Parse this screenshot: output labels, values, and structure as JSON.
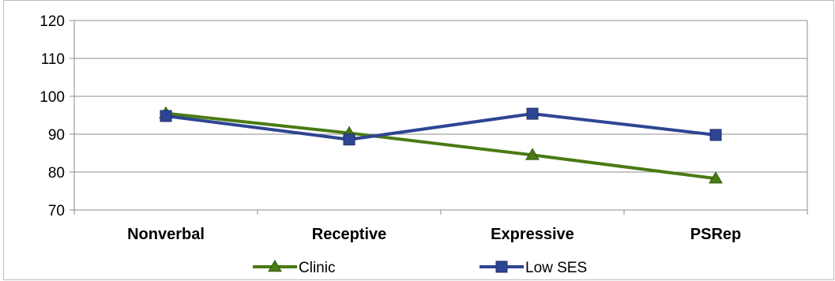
{
  "chart_data": {
    "type": "line",
    "categories": [
      "Nonverbal",
      "Receptive",
      "Expressive",
      "PSRep"
    ],
    "series": [
      {
        "name": "Clinic",
        "values": [
          95.5,
          90.3,
          84.5,
          78.3
        ],
        "color": "#4a7a14",
        "marker": "triangle"
      },
      {
        "name": "Low SES",
        "values": [
          94.8,
          88.6,
          95.4,
          89.8
        ],
        "color": "#2e4592",
        "marker": "square"
      }
    ],
    "title": "",
    "xlabel": "",
    "ylabel": "",
    "ylim": [
      70,
      120
    ],
    "yticks": [
      70,
      80,
      90,
      100,
      110,
      120
    ],
    "grid": true,
    "legend": "bottom"
  }
}
